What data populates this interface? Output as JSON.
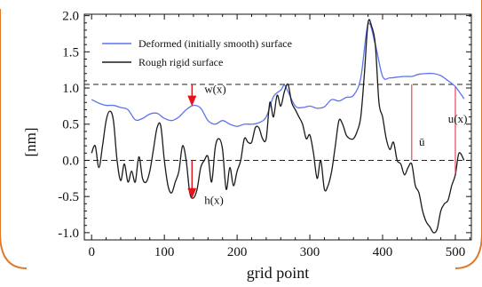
{
  "chart_data": {
    "type": "line",
    "xlabel": "grid point",
    "ylabel": "[nm]",
    "xlim": [
      -10,
      522
    ],
    "ylim": [
      -1.1,
      2.02
    ],
    "x_ticks": [
      "0",
      "100",
      "200",
      "300",
      "400",
      "500"
    ],
    "x_tick_values": [
      0,
      100,
      200,
      300,
      400,
      500
    ],
    "y_ticks": [
      "2.0",
      "1.5",
      "1.0",
      "0.5",
      "0.0",
      "-0.5",
      "-1.0"
    ],
    "y_tick_values": [
      2.0,
      1.5,
      1.0,
      0.5,
      0.0,
      -0.5,
      -1.0
    ],
    "legend_position": "top-left",
    "series": [
      {
        "name": "Deformed (initially smooth) surface",
        "color": "#5b74f0",
        "x": [
          0,
          10,
          20,
          30,
          40,
          50,
          60,
          70,
          80,
          90,
          100,
          110,
          120,
          130,
          140,
          150,
          160,
          170,
          180,
          190,
          200,
          210,
          220,
          230,
          240,
          250,
          260,
          265,
          270,
          280,
          290,
          300,
          310,
          320,
          330,
          340,
          350,
          360,
          370,
          380,
          390,
          400,
          410,
          420,
          430,
          440,
          450,
          460,
          470,
          480,
          490,
          500,
          512
        ],
        "y": [
          0.84,
          0.79,
          0.76,
          0.76,
          0.73,
          0.7,
          0.56,
          0.58,
          0.64,
          0.65,
          0.58,
          0.55,
          0.6,
          0.7,
          0.76,
          0.72,
          0.55,
          0.5,
          0.55,
          0.5,
          0.47,
          0.5,
          0.5,
          0.52,
          0.6,
          0.88,
          0.97,
          1.04,
          0.95,
          0.75,
          0.73,
          0.75,
          0.72,
          0.74,
          0.84,
          0.82,
          0.87,
          0.9,
          1.14,
          1.88,
          1.6,
          1.16,
          1.14,
          1.15,
          1.16,
          1.16,
          1.19,
          1.2,
          1.2,
          1.17,
          1.1,
          1.02,
          0.85
        ]
      },
      {
        "name": "Rough rigid surface",
        "color": "#1a1a1a",
        "x": [
          0,
          5,
          10,
          15,
          20,
          25,
          30,
          35,
          40,
          45,
          50,
          55,
          60,
          65,
          70,
          75,
          80,
          85,
          90,
          95,
          100,
          105,
          110,
          115,
          120,
          125,
          130,
          135,
          140,
          145,
          150,
          155,
          160,
          165,
          170,
          175,
          180,
          185,
          190,
          195,
          200,
          205,
          210,
          215,
          220,
          225,
          230,
          235,
          240,
          245,
          250,
          255,
          260,
          265,
          270,
          275,
          280,
          285,
          290,
          295,
          300,
          305,
          310,
          315,
          320,
          325,
          330,
          335,
          340,
          345,
          350,
          355,
          360,
          365,
          370,
          375,
          380,
          385,
          390,
          395,
          400,
          405,
          410,
          415,
          420,
          425,
          430,
          435,
          440,
          445,
          450,
          455,
          460,
          465,
          470,
          475,
          480,
          485,
          490,
          495,
          500,
          505,
          512
        ],
        "y": [
          0.1,
          0.2,
          -0.1,
          0.2,
          0.55,
          0.68,
          0.55,
          0.0,
          -0.28,
          -0.05,
          -0.3,
          -0.15,
          -0.3,
          0.05,
          -0.25,
          -0.3,
          -0.15,
          0.15,
          0.45,
          0.48,
          0.0,
          -0.35,
          -0.45,
          -0.3,
          -0.15,
          0.2,
          0.0,
          -0.45,
          -0.52,
          -0.4,
          -0.1,
          0.0,
          0.05,
          -0.3,
          0.18,
          0.3,
          0.15,
          -0.4,
          -0.1,
          -0.35,
          -0.15,
          0.0,
          0.3,
          0.25,
          0.25,
          0.45,
          0.45,
          0.3,
          0.3,
          0.8,
          0.6,
          0.9,
          0.75,
          0.95,
          1.05,
          0.8,
          0.7,
          0.6,
          0.5,
          0.3,
          0.35,
          0.1,
          -0.25,
          0.0,
          -0.4,
          -0.35,
          -0.15,
          0.2,
          0.55,
          0.5,
          0.35,
          0.3,
          0.3,
          0.4,
          0.6,
          1.2,
          1.9,
          1.85,
          1.6,
          0.8,
          0.6,
          0.3,
          0.15,
          0.25,
          0.0,
          -0.05,
          -0.2,
          -0.1,
          -0.05,
          -0.35,
          -0.45,
          -0.7,
          -0.85,
          -0.92,
          -1.0,
          -0.95,
          -0.7,
          -0.6,
          -0.55,
          -0.35,
          -0.2,
          0.1,
          0.0
        ]
      }
    ],
    "reference_lines": [
      {
        "y": 1.05,
        "style": "dashed"
      },
      {
        "y": 0.0,
        "style": "dashed"
      }
    ],
    "annotations": [
      {
        "text": "w(x)",
        "x": 155,
        "y": 0.93
      },
      {
        "text": "h(x)",
        "x": 155,
        "y": -0.6
      },
      {
        "text": "u(x)",
        "x": 490,
        "y": 0.52
      },
      {
        "text": "ū",
        "x": 450,
        "y": 0.2
      }
    ],
    "arrows": [
      {
        "x": 138,
        "y_from": 1.05,
        "y_to": 0.76,
        "color": "#e3121b"
      },
      {
        "x": 138,
        "y_from": 0.0,
        "y_to": -0.52,
        "color": "#e3121b"
      }
    ],
    "vertical_markers": [
      {
        "x": 440,
        "y_from": 0.0,
        "y_to": 1.05,
        "color": "#e8536b"
      },
      {
        "x": 500,
        "y_from": -0.18,
        "y_to": 1.02,
        "color": "#e8536b"
      }
    ]
  },
  "colors": {
    "frame_orange": "#e07a2a",
    "ref_dash": "#222222"
  }
}
